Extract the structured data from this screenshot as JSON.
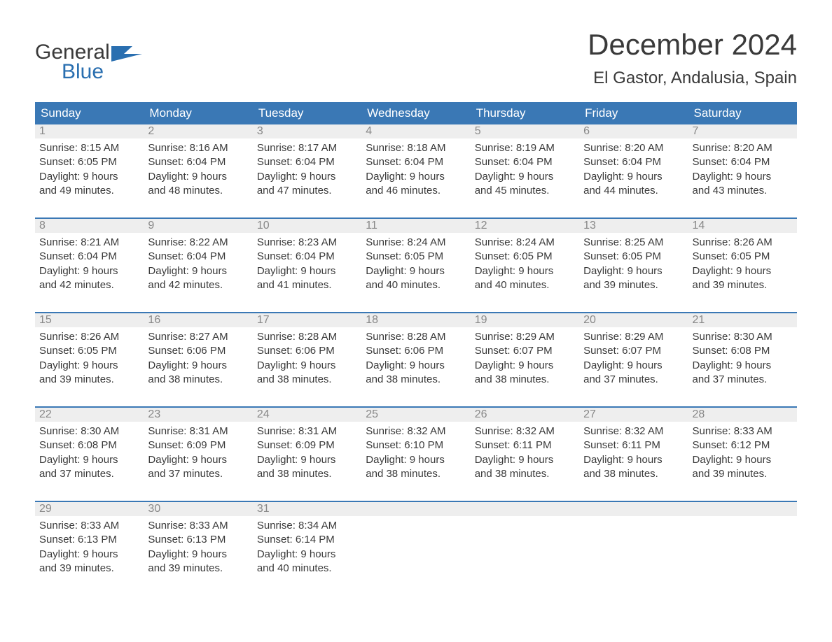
{
  "logo": {
    "general": "General",
    "blue": "Blue"
  },
  "title": "December 2024",
  "location": "El Gastor, Andalusia, Spain",
  "colors": {
    "header_bg": "#3a78b5",
    "week_border": "#3a78b5",
    "day_number_bg": "#eeeeee",
    "day_number_color": "#888888",
    "text": "#3a3a3a",
    "logo_blue": "#2a6fb0",
    "background": "#ffffff"
  },
  "weekdays": [
    "Sunday",
    "Monday",
    "Tuesday",
    "Wednesday",
    "Thursday",
    "Friday",
    "Saturday"
  ],
  "weeks": [
    [
      {
        "day": "1",
        "sunrise": "Sunrise: 8:15 AM",
        "sunset": "Sunset: 6:05 PM",
        "daylight1": "Daylight: 9 hours",
        "daylight2": "and 49 minutes."
      },
      {
        "day": "2",
        "sunrise": "Sunrise: 8:16 AM",
        "sunset": "Sunset: 6:04 PM",
        "daylight1": "Daylight: 9 hours",
        "daylight2": "and 48 minutes."
      },
      {
        "day": "3",
        "sunrise": "Sunrise: 8:17 AM",
        "sunset": "Sunset: 6:04 PM",
        "daylight1": "Daylight: 9 hours",
        "daylight2": "and 47 minutes."
      },
      {
        "day": "4",
        "sunrise": "Sunrise: 8:18 AM",
        "sunset": "Sunset: 6:04 PM",
        "daylight1": "Daylight: 9 hours",
        "daylight2": "and 46 minutes."
      },
      {
        "day": "5",
        "sunrise": "Sunrise: 8:19 AM",
        "sunset": "Sunset: 6:04 PM",
        "daylight1": "Daylight: 9 hours",
        "daylight2": "and 45 minutes."
      },
      {
        "day": "6",
        "sunrise": "Sunrise: 8:20 AM",
        "sunset": "Sunset: 6:04 PM",
        "daylight1": "Daylight: 9 hours",
        "daylight2": "and 44 minutes."
      },
      {
        "day": "7",
        "sunrise": "Sunrise: 8:20 AM",
        "sunset": "Sunset: 6:04 PM",
        "daylight1": "Daylight: 9 hours",
        "daylight2": "and 43 minutes."
      }
    ],
    [
      {
        "day": "8",
        "sunrise": "Sunrise: 8:21 AM",
        "sunset": "Sunset: 6:04 PM",
        "daylight1": "Daylight: 9 hours",
        "daylight2": "and 42 minutes."
      },
      {
        "day": "9",
        "sunrise": "Sunrise: 8:22 AM",
        "sunset": "Sunset: 6:04 PM",
        "daylight1": "Daylight: 9 hours",
        "daylight2": "and 42 minutes."
      },
      {
        "day": "10",
        "sunrise": "Sunrise: 8:23 AM",
        "sunset": "Sunset: 6:04 PM",
        "daylight1": "Daylight: 9 hours",
        "daylight2": "and 41 minutes."
      },
      {
        "day": "11",
        "sunrise": "Sunrise: 8:24 AM",
        "sunset": "Sunset: 6:05 PM",
        "daylight1": "Daylight: 9 hours",
        "daylight2": "and 40 minutes."
      },
      {
        "day": "12",
        "sunrise": "Sunrise: 8:24 AM",
        "sunset": "Sunset: 6:05 PM",
        "daylight1": "Daylight: 9 hours",
        "daylight2": "and 40 minutes."
      },
      {
        "day": "13",
        "sunrise": "Sunrise: 8:25 AM",
        "sunset": "Sunset: 6:05 PM",
        "daylight1": "Daylight: 9 hours",
        "daylight2": "and 39 minutes."
      },
      {
        "day": "14",
        "sunrise": "Sunrise: 8:26 AM",
        "sunset": "Sunset: 6:05 PM",
        "daylight1": "Daylight: 9 hours",
        "daylight2": "and 39 minutes."
      }
    ],
    [
      {
        "day": "15",
        "sunrise": "Sunrise: 8:26 AM",
        "sunset": "Sunset: 6:05 PM",
        "daylight1": "Daylight: 9 hours",
        "daylight2": "and 39 minutes."
      },
      {
        "day": "16",
        "sunrise": "Sunrise: 8:27 AM",
        "sunset": "Sunset: 6:06 PM",
        "daylight1": "Daylight: 9 hours",
        "daylight2": "and 38 minutes."
      },
      {
        "day": "17",
        "sunrise": "Sunrise: 8:28 AM",
        "sunset": "Sunset: 6:06 PM",
        "daylight1": "Daylight: 9 hours",
        "daylight2": "and 38 minutes."
      },
      {
        "day": "18",
        "sunrise": "Sunrise: 8:28 AM",
        "sunset": "Sunset: 6:06 PM",
        "daylight1": "Daylight: 9 hours",
        "daylight2": "and 38 minutes."
      },
      {
        "day": "19",
        "sunrise": "Sunrise: 8:29 AM",
        "sunset": "Sunset: 6:07 PM",
        "daylight1": "Daylight: 9 hours",
        "daylight2": "and 38 minutes."
      },
      {
        "day": "20",
        "sunrise": "Sunrise: 8:29 AM",
        "sunset": "Sunset: 6:07 PM",
        "daylight1": "Daylight: 9 hours",
        "daylight2": "and 37 minutes."
      },
      {
        "day": "21",
        "sunrise": "Sunrise: 8:30 AM",
        "sunset": "Sunset: 6:08 PM",
        "daylight1": "Daylight: 9 hours",
        "daylight2": "and 37 minutes."
      }
    ],
    [
      {
        "day": "22",
        "sunrise": "Sunrise: 8:30 AM",
        "sunset": "Sunset: 6:08 PM",
        "daylight1": "Daylight: 9 hours",
        "daylight2": "and 37 minutes."
      },
      {
        "day": "23",
        "sunrise": "Sunrise: 8:31 AM",
        "sunset": "Sunset: 6:09 PM",
        "daylight1": "Daylight: 9 hours",
        "daylight2": "and 37 minutes."
      },
      {
        "day": "24",
        "sunrise": "Sunrise: 8:31 AM",
        "sunset": "Sunset: 6:09 PM",
        "daylight1": "Daylight: 9 hours",
        "daylight2": "and 38 minutes."
      },
      {
        "day": "25",
        "sunrise": "Sunrise: 8:32 AM",
        "sunset": "Sunset: 6:10 PM",
        "daylight1": "Daylight: 9 hours",
        "daylight2": "and 38 minutes."
      },
      {
        "day": "26",
        "sunrise": "Sunrise: 8:32 AM",
        "sunset": "Sunset: 6:11 PM",
        "daylight1": "Daylight: 9 hours",
        "daylight2": "and 38 minutes."
      },
      {
        "day": "27",
        "sunrise": "Sunrise: 8:32 AM",
        "sunset": "Sunset: 6:11 PM",
        "daylight1": "Daylight: 9 hours",
        "daylight2": "and 38 minutes."
      },
      {
        "day": "28",
        "sunrise": "Sunrise: 8:33 AM",
        "sunset": "Sunset: 6:12 PM",
        "daylight1": "Daylight: 9 hours",
        "daylight2": "and 39 minutes."
      }
    ],
    [
      {
        "day": "29",
        "sunrise": "Sunrise: 8:33 AM",
        "sunset": "Sunset: 6:13 PM",
        "daylight1": "Daylight: 9 hours",
        "daylight2": "and 39 minutes."
      },
      {
        "day": "30",
        "sunrise": "Sunrise: 8:33 AM",
        "sunset": "Sunset: 6:13 PM",
        "daylight1": "Daylight: 9 hours",
        "daylight2": "and 39 minutes."
      },
      {
        "day": "31",
        "sunrise": "Sunrise: 8:34 AM",
        "sunset": "Sunset: 6:14 PM",
        "daylight1": "Daylight: 9 hours",
        "daylight2": "and 40 minutes."
      },
      null,
      null,
      null,
      null
    ]
  ]
}
